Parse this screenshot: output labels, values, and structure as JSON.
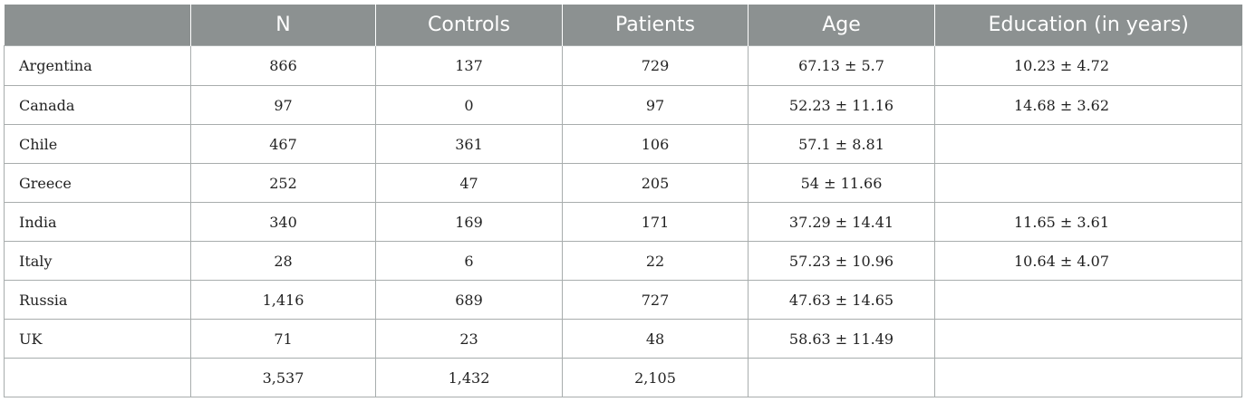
{
  "table": {
    "headers": [
      "",
      "N",
      "Controls",
      "Patients",
      "Age",
      "Education (in years)"
    ],
    "rows": [
      {
        "country": "Argentina",
        "n": "866",
        "controls": "137",
        "patients": "729",
        "age": "67.13 ± 5.7",
        "education": "10.23 ± 4.72"
      },
      {
        "country": "Canada",
        "n": "97",
        "controls": "0",
        "patients": "97",
        "age": "52.23 ± 11.16",
        "education": "14.68 ± 3.62"
      },
      {
        "country": "Chile",
        "n": "467",
        "controls": "361",
        "patients": "106",
        "age": "57.1 ± 8.81",
        "education": ""
      },
      {
        "country": "Greece",
        "n": "252",
        "controls": "47",
        "patients": "205",
        "age": "54 ± 11.66",
        "education": ""
      },
      {
        "country": "India",
        "n": "340",
        "controls": "169",
        "patients": "171",
        "age": "37.29 ± 14.41",
        "education": "11.65 ± 3.61"
      },
      {
        "country": "Italy",
        "n": "28",
        "controls": "6",
        "patients": "22",
        "age": "57.23 ± 10.96",
        "education": "10.64 ± 4.07"
      },
      {
        "country": "Russia",
        "n": "1,416",
        "controls": "689",
        "patients": "727",
        "age": "47.63 ± 14.65",
        "education": ""
      },
      {
        "country": "UK",
        "n": "71",
        "controls": "23",
        "patients": "48",
        "age": "58.63 ± 11.49",
        "education": ""
      }
    ],
    "total": {
      "country": "",
      "n": "3,537",
      "controls": "1,432",
      "patients": "2,105",
      "age": "",
      "education": ""
    }
  }
}
